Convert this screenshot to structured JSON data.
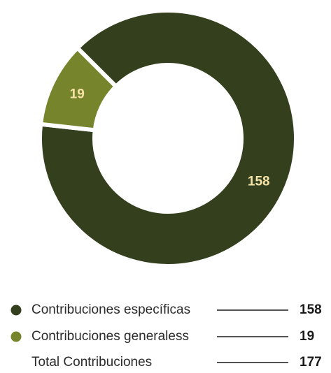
{
  "chart_data": {
    "type": "pie",
    "donut": true,
    "categories": [
      "Contribuciones específicas",
      "Contribuciones generaless"
    ],
    "values": [
      158,
      19
    ],
    "colors": [
      "#333f1d",
      "#76852c"
    ],
    "label_color": "#f5e3a8",
    "total": {
      "label": "Total Contribuciones",
      "value": 177
    }
  }
}
